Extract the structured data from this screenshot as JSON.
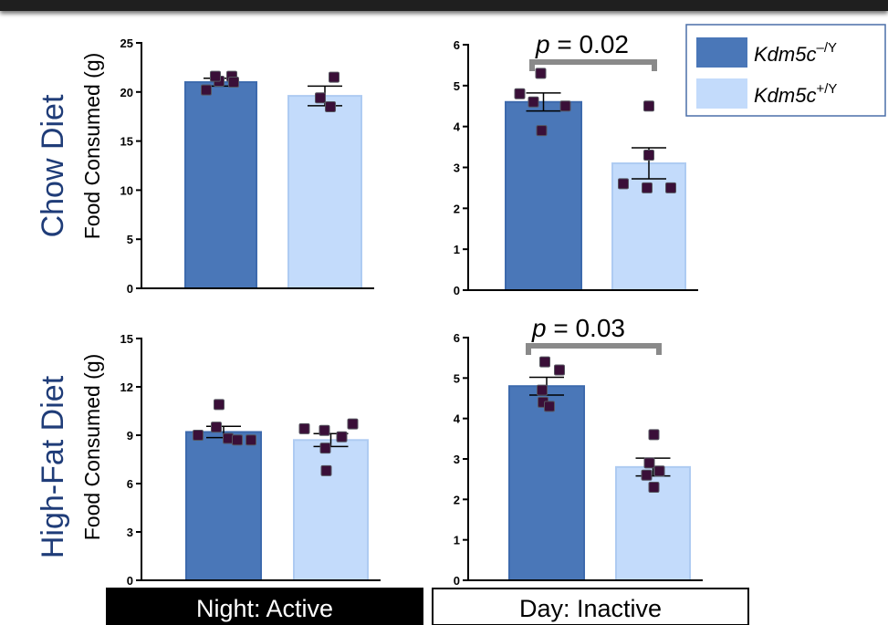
{
  "colors": {
    "ko_bar": "#4a77b8",
    "ko_edge": "#3d6aad",
    "wt_bar": "#c3dbfb",
    "wt_edge": "#aecbf2",
    "point_fill": "#3a0f38",
    "point_edge": "#55555f",
    "bracket": "#8a8a8a",
    "row_label": "#1f3c78"
  },
  "row_labels": [
    "Chow Diet",
    "High-Fat Diet"
  ],
  "y_axis_label": "Food Consumed (g)",
  "legend": {
    "entries": [
      {
        "base": "Kdm5c",
        "sup": "–/Y",
        "color_key": "ko_bar"
      },
      {
        "base": "Kdm5c",
        "sup": "+/Y",
        "color_key": "wt_bar"
      }
    ]
  },
  "bottom_labels": [
    {
      "text": "Night: Active",
      "style": "dark"
    },
    {
      "text": "Day: Inactive",
      "style": "light"
    }
  ],
  "chart_data": [
    {
      "type": "bar",
      "row": "Chow Diet",
      "period": "Night: Active",
      "ylim": [
        0,
        25
      ],
      "yticks": [
        0,
        5,
        10,
        15,
        20,
        25
      ],
      "series": [
        {
          "name": "Kdm5c–/Y",
          "mean": 21.0,
          "sem": 0.4,
          "points": [
            20.2,
            21.1,
            21.6,
            21.6,
            21.0
          ]
        },
        {
          "name": "Kdm5c+/Y",
          "mean": 19.6,
          "sem": 1.0,
          "points": [
            21.5,
            19.4,
            18.5
          ]
        }
      ],
      "annotation": null
    },
    {
      "type": "bar",
      "row": "Chow Diet",
      "period": "Day: Inactive",
      "ylim": [
        0,
        6
      ],
      "yticks": [
        0,
        1,
        2,
        3,
        4,
        5,
        6
      ],
      "series": [
        {
          "name": "Kdm5c–/Y",
          "mean": 4.6,
          "sem": 0.22,
          "points": [
            4.8,
            5.3,
            4.6,
            4.5,
            3.9
          ]
        },
        {
          "name": "Kdm5c+/Y",
          "mean": 3.1,
          "sem": 0.38,
          "points": [
            4.5,
            3.3,
            2.6,
            2.5,
            2.5
          ]
        }
      ],
      "annotation": {
        "text": "p = 0.02"
      }
    },
    {
      "type": "bar",
      "row": "High-Fat Diet",
      "period": "Night: Active",
      "ylim": [
        0,
        15
      ],
      "yticks": [
        0,
        3,
        6,
        9,
        12,
        15
      ],
      "series": [
        {
          "name": "Kdm5c–/Y",
          "mean": 9.2,
          "sem": 0.35,
          "points": [
            9.0,
            9.5,
            10.9,
            8.8,
            8.7,
            8.7
          ]
        },
        {
          "name": "Kdm5c+/Y",
          "mean": 8.7,
          "sem": 0.4,
          "points": [
            9.4,
            9.3,
            8.2,
            9.7,
            6.8,
            8.9
          ]
        }
      ],
      "annotation": null
    },
    {
      "type": "bar",
      "row": "High-Fat Diet",
      "period": "Day: Inactive",
      "ylim": [
        0,
        6
      ],
      "yticks": [
        0,
        1,
        2,
        3,
        4,
        5,
        6
      ],
      "series": [
        {
          "name": "Kdm5c–/Y",
          "mean": 4.8,
          "sem": 0.22,
          "points": [
            5.4,
            5.2,
            4.7,
            4.4,
            4.3
          ]
        },
        {
          "name": "Kdm5c+/Y",
          "mean": 2.8,
          "sem": 0.22,
          "points": [
            3.6,
            2.9,
            2.7,
            2.6,
            2.3
          ]
        }
      ],
      "annotation": {
        "text": "p = 0.03"
      }
    }
  ]
}
